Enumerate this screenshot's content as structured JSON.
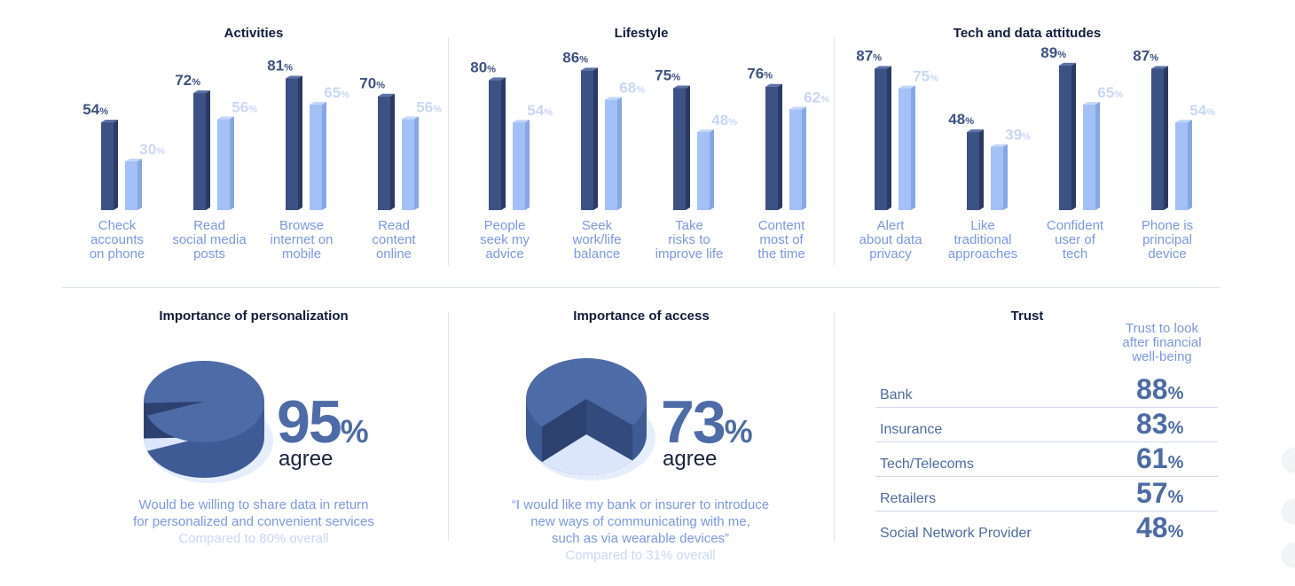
{
  "sections": {
    "activities": "Activities",
    "lifestyle": "Lifestyle",
    "tech": "Tech and data attitudes",
    "personalization": "Importance of personalization",
    "access": "Importance of access",
    "trust": "Trust"
  },
  "colors": {
    "dark_bar": "#3d5284",
    "light_bar": "#a3c1f7",
    "accent": "#4d6ba6",
    "caption": "#7a98e6"
  },
  "chart_data": {
    "type": "bar",
    "groups": [
      {
        "name": "Activities",
        "categories": [
          "Check accounts on phone",
          "Read social media posts",
          "Browse internet on mobile",
          "Read content online"
        ],
        "series": [
          {
            "values": [
              54,
              72,
              81,
              70
            ]
          },
          {
            "values": [
              30,
              56,
              65,
              56
            ]
          }
        ]
      },
      {
        "name": "Lifestyle",
        "categories": [
          "People seek my advice",
          "Seek work/life balance",
          "Take risks to improve life",
          "Content most of the time"
        ],
        "series": [
          {
            "values": [
              80,
              86,
              75,
              76
            ]
          },
          {
            "values": [
              54,
              68,
              48,
              62
            ]
          }
        ]
      },
      {
        "name": "Tech and data attitudes",
        "categories": [
          "Alert about data privacy",
          "Like traditional approaches",
          "Confident user of tech",
          "Phone is principal device"
        ],
        "series": [
          {
            "values": [
              87,
              48,
              89,
              87
            ]
          },
          {
            "values": [
              75,
              39,
              65,
              54
            ]
          }
        ]
      }
    ],
    "value_suffix": "%",
    "ylim": [
      0,
      100
    ]
  },
  "captions": [
    [
      "Check",
      "accounts",
      "on phone"
    ],
    [
      "Read",
      "social media",
      "posts"
    ],
    [
      "Browse",
      "internet on",
      "mobile"
    ],
    [
      "Read",
      "content",
      "online"
    ],
    [
      "People",
      "seek my",
      "advice"
    ],
    [
      "Seek",
      "work/life",
      "balance"
    ],
    [
      "Take",
      "risks to",
      "improve life"
    ],
    [
      "Content",
      "most of",
      "the time"
    ],
    [
      "Alert",
      "about data",
      "privacy"
    ],
    [
      "Like",
      "traditional",
      "approaches"
    ],
    [
      "Confident",
      "user of",
      "tech"
    ],
    [
      "Phone is",
      "principal",
      "device"
    ]
  ],
  "personalization": {
    "value": "95",
    "pct": "%",
    "agree": "agree",
    "share": 0.95,
    "desc1": "Would be willing to share data in return",
    "desc2": "for personalized and convenient services",
    "compare": "Compared to 80% overall"
  },
  "access": {
    "value": "73",
    "pct": "%",
    "agree": "agree",
    "share": 0.73,
    "desc1": "“I would like my bank or insurer to introduce",
    "desc2": "new ways of communicating with me,",
    "desc3": "such as via wearable devices”",
    "compare": "Compared to 31% overall"
  },
  "trust": {
    "header": [
      "Trust to look",
      "after financial",
      "well-being"
    ],
    "rows": [
      {
        "label": "Bank",
        "value": "88",
        "pct": "%"
      },
      {
        "label": "Insurance",
        "value": "83",
        "pct": "%"
      },
      {
        "label": "Tech/Telecoms",
        "value": "61",
        "pct": "%"
      },
      {
        "label": "Retailers",
        "value": "57",
        "pct": "%"
      },
      {
        "label": "Social Network Provider",
        "value": "48",
        "pct": "%"
      }
    ]
  }
}
